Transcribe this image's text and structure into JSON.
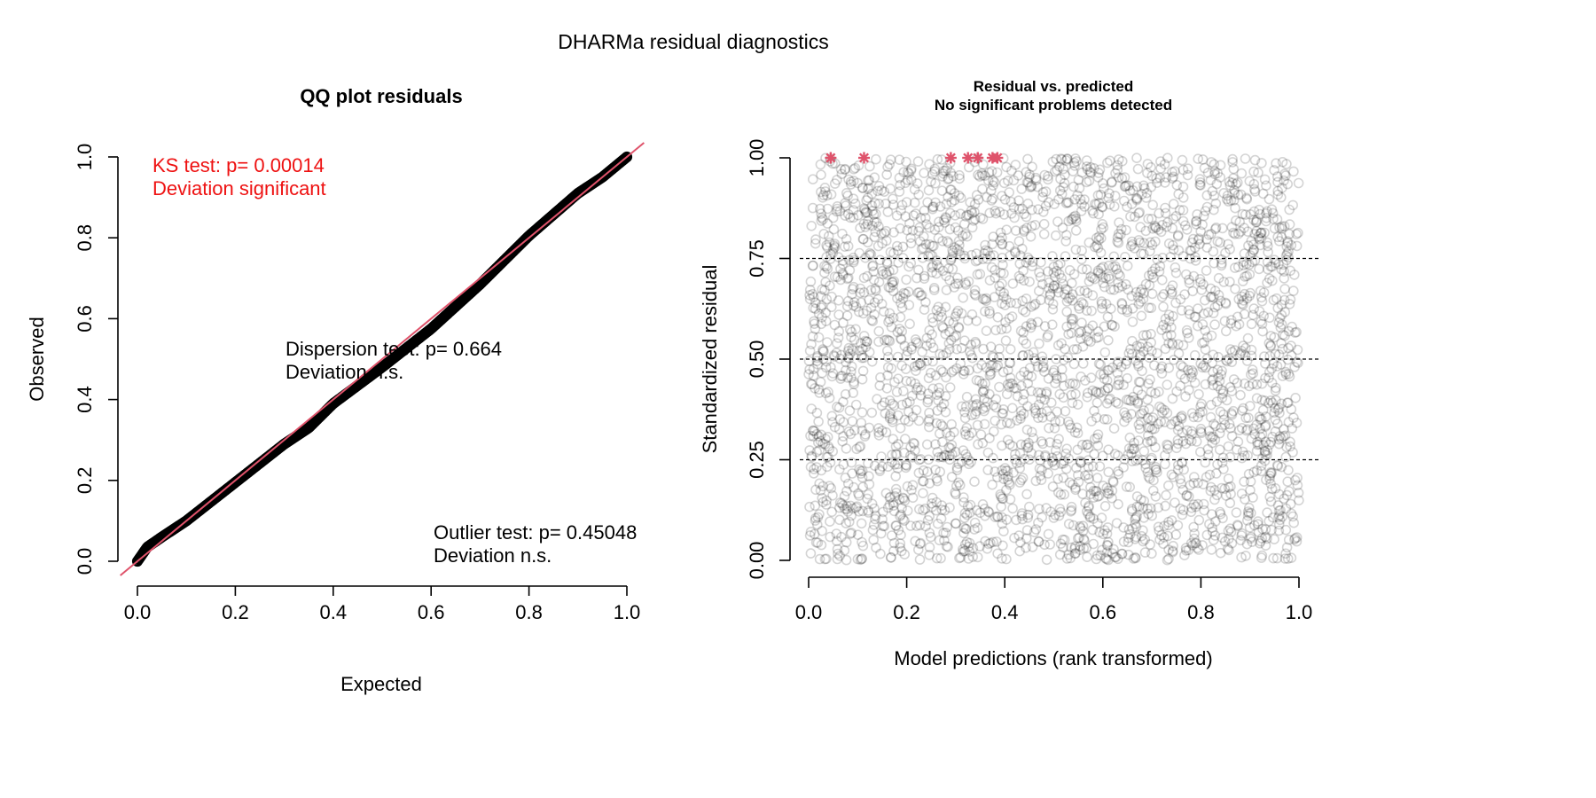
{
  "figure_title": "DHARMa residual diagnostics",
  "colors": {
    "qq_points": "#000000",
    "reference_line": "#df536b",
    "ks_text": "#ee1111",
    "residual_points": "#000000",
    "outlier_marker": "#df536b",
    "quantile_lines": "#000000"
  },
  "chart_data": [
    {
      "type": "scatter",
      "title": "QQ plot residuals",
      "xlabel": "Expected",
      "ylabel": "Observed",
      "xlim": [
        0.0,
        1.0
      ],
      "ylim": [
        0.0,
        1.0
      ],
      "x_ticks": [
        "0.0",
        "0.2",
        "0.4",
        "0.6",
        "0.8",
        "1.0"
      ],
      "y_ticks": [
        "0.0",
        "0.2",
        "0.4",
        "0.6",
        "0.8",
        "1.0"
      ],
      "reference_line": {
        "slope": 1,
        "intercept": 0
      },
      "qq_curve": [
        {
          "x": 0.0,
          "y": 0.0
        },
        {
          "x": 0.02,
          "y": 0.035
        },
        {
          "x": 0.05,
          "y": 0.06
        },
        {
          "x": 0.1,
          "y": 0.1
        },
        {
          "x": 0.2,
          "y": 0.195
        },
        {
          "x": 0.3,
          "y": 0.29
        },
        {
          "x": 0.35,
          "y": 0.33
        },
        {
          "x": 0.4,
          "y": 0.39
        },
        {
          "x": 0.5,
          "y": 0.48
        },
        {
          "x": 0.6,
          "y": 0.575
        },
        {
          "x": 0.7,
          "y": 0.685
        },
        {
          "x": 0.8,
          "y": 0.805
        },
        {
          "x": 0.9,
          "y": 0.91
        },
        {
          "x": 0.95,
          "y": 0.95
        },
        {
          "x": 1.0,
          "y": 1.0
        }
      ],
      "annotations": {
        "ks_test": "KS test: p= 0.00014",
        "ks_deviation": "Deviation  significant",
        "dispersion_test": "Dispersion test: p= 0.664",
        "dispersion_deviation": "Deviation  n.s.",
        "outlier_test": "Outlier test: p= 0.45048",
        "outlier_deviation": "Deviation  n.s."
      },
      "grid": false
    },
    {
      "type": "scatter",
      "title": "Residual vs. predicted",
      "subtitle": "No significant problems detected",
      "xlabel": "Model predictions (rank transformed)",
      "ylabel": "Standardized residual",
      "xlim": [
        0.0,
        1.0
      ],
      "ylim": [
        0.0,
        1.0
      ],
      "x_ticks": [
        "0.0",
        "0.2",
        "0.4",
        "0.6",
        "0.8",
        "1.0"
      ],
      "y_ticks": [
        "0.00",
        "0.25",
        "0.50",
        "0.75",
        "1.00"
      ],
      "quantile_lines": [
        0.25,
        0.5,
        0.75
      ],
      "point_cloud": {
        "n_points": 3000,
        "distribution": "uniform",
        "x_range": [
          0.0,
          1.0
        ],
        "y_range": [
          0.0,
          1.0
        ]
      },
      "outliers": [
        {
          "x": 0.045,
          "y": 1.0
        },
        {
          "x": 0.113,
          "y": 1.0
        },
        {
          "x": 0.29,
          "y": 1.0
        },
        {
          "x": 0.325,
          "y": 1.0
        },
        {
          "x": 0.345,
          "y": 1.0
        },
        {
          "x": 0.375,
          "y": 1.0
        },
        {
          "x": 0.385,
          "y": 1.0
        }
      ],
      "grid": false
    }
  ]
}
